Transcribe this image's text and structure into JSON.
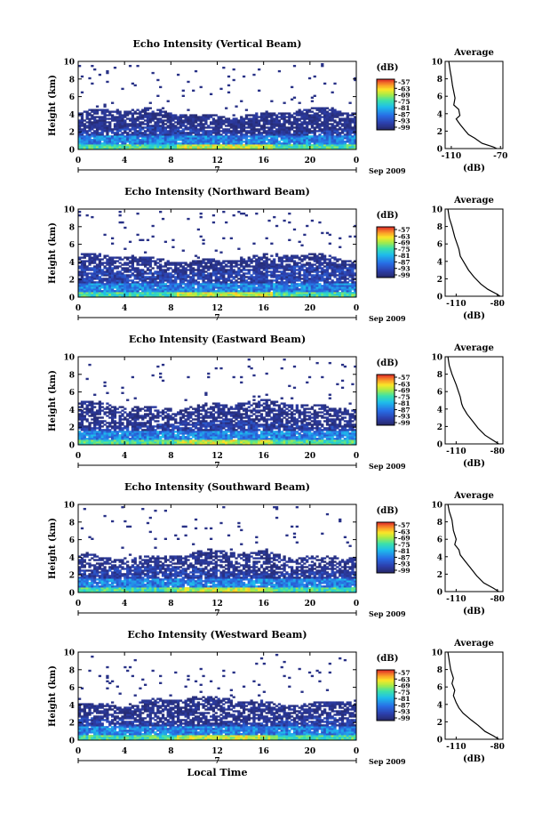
{
  "xlabel": "Local Time",
  "chart_data": [
    {
      "type": "heatmap",
      "title": "Echo Intensity (Vertical Beam)",
      "ylabel": "Height (km)",
      "xlim": [
        0,
        24
      ],
      "ylim": [
        0,
        10
      ],
      "x_ticks": [
        "0",
        "4",
        "8",
        "12",
        "16",
        "20",
        "0"
      ],
      "y_ticks": [
        "0",
        "2",
        "4",
        "6",
        "8",
        "10"
      ],
      "date_marker": "7",
      "date_label": "Sep 2009",
      "colorbar": {
        "unit": "(dB)",
        "ticks": [
          "-57",
          "-63",
          "-69",
          "-75",
          "-81",
          "-87",
          "-93",
          "-99"
        ]
      },
      "features": {
        "top_km": 4.2,
        "layer2_km": 2.2,
        "sparse": 0.2
      },
      "average": {
        "title": "Average",
        "xlabel": "(dB)",
        "x_ticks": [
          "-110",
          "-70"
        ],
        "x_tick_values": [
          -110,
          -70
        ],
        "xlim": [
          -115,
          -68
        ],
        "y_ticks": [
          "0",
          "2",
          "4",
          "6",
          "8",
          "10"
        ],
        "profile": [
          [
            -112,
            10
          ],
          [
            -111,
            9.0
          ],
          [
            -110,
            8.2
          ],
          [
            -109,
            7.2
          ],
          [
            -107,
            5.8
          ],
          [
            -108,
            5.0
          ],
          [
            -104,
            4.5
          ],
          [
            -103,
            3.8
          ],
          [
            -106,
            3.4
          ],
          [
            -103,
            2.8
          ],
          [
            -99,
            2.1
          ],
          [
            -96,
            1.6
          ],
          [
            -91,
            1.2
          ],
          [
            -85,
            0.6
          ],
          [
            -76,
            0.2
          ],
          [
            -73,
            0
          ]
        ]
      }
    },
    {
      "type": "heatmap",
      "title": "Echo Intensity (Northward Beam)",
      "ylabel": "Height (km)",
      "xlim": [
        0,
        24
      ],
      "ylim": [
        0,
        10
      ],
      "x_ticks": [
        "0",
        "4",
        "8",
        "12",
        "16",
        "20",
        "0"
      ],
      "y_ticks": [
        "0",
        "2",
        "4",
        "6",
        "8",
        "10"
      ],
      "date_marker": "7",
      "date_label": "Sep 2009",
      "colorbar": {
        "unit": "(dB)",
        "ticks": [
          "-57",
          "-63",
          "-69",
          "-75",
          "-81",
          "-87",
          "-93",
          "-99"
        ]
      },
      "features": {
        "top_km": 4.5,
        "layer2_km": 3.2,
        "sparse": 0.28
      },
      "average": {
        "title": "Average",
        "xlabel": "(dB)",
        "x_ticks": [
          "-110",
          "-80"
        ],
        "x_tick_values": [
          -110,
          -80
        ],
        "xlim": [
          -118,
          -76
        ],
        "y_ticks": [
          "0",
          "2",
          "4",
          "6",
          "8",
          "10"
        ],
        "profile": [
          [
            -116,
            10
          ],
          [
            -115,
            9.0
          ],
          [
            -113,
            8.0
          ],
          [
            -111,
            6.8
          ],
          [
            -108,
            5.4
          ],
          [
            -107,
            4.6
          ],
          [
            -104,
            3.8
          ],
          [
            -101,
            3.0
          ],
          [
            -97,
            2.2
          ],
          [
            -92,
            1.4
          ],
          [
            -87,
            0.8
          ],
          [
            -81,
            0.3
          ],
          [
            -78,
            0
          ]
        ]
      }
    },
    {
      "type": "heatmap",
      "title": "Echo Intensity (Eastward Beam)",
      "ylabel": "Height (km)",
      "xlim": [
        0,
        24
      ],
      "ylim": [
        0,
        10
      ],
      "x_ticks": [
        "0",
        "4",
        "8",
        "12",
        "16",
        "20",
        "0"
      ],
      "y_ticks": [
        "0",
        "2",
        "4",
        "6",
        "8",
        "10"
      ],
      "date_marker": "7",
      "date_label": "Sep 2009",
      "colorbar": {
        "unit": "(dB)",
        "ticks": [
          "-57",
          "-63",
          "-69",
          "-75",
          "-81",
          "-87",
          "-93",
          "-99"
        ]
      },
      "features": {
        "top_km": 4.6,
        "layer2_km": 2.4,
        "sparse": 0.34
      },
      "average": {
        "title": "Average",
        "xlabel": "(dB)",
        "x_ticks": [
          "-110",
          "-80"
        ],
        "x_tick_values": [
          -110,
          -80
        ],
        "xlim": [
          -118,
          -76
        ],
        "y_ticks": [
          "0",
          "2",
          "4",
          "6",
          "8",
          "10"
        ],
        "profile": [
          [
            -116,
            10
          ],
          [
            -115,
            9.0
          ],
          [
            -113,
            8.0
          ],
          [
            -110,
            6.8
          ],
          [
            -107,
            5.4
          ],
          [
            -106,
            4.6
          ],
          [
            -105,
            4.2
          ],
          [
            -102,
            3.4
          ],
          [
            -98,
            2.6
          ],
          [
            -94,
            1.8
          ],
          [
            -89,
            1.0
          ],
          [
            -83,
            0.4
          ],
          [
            -79,
            0
          ]
        ]
      }
    },
    {
      "type": "heatmap",
      "title": "Echo Intensity (Southward Beam)",
      "ylabel": "Height (km)",
      "xlim": [
        0,
        24
      ],
      "ylim": [
        0,
        10
      ],
      "x_ticks": [
        "0",
        "4",
        "8",
        "12",
        "16",
        "20",
        "0"
      ],
      "y_ticks": [
        "0",
        "2",
        "4",
        "6",
        "8",
        "10"
      ],
      "date_marker": "7",
      "date_label": "Sep 2009",
      "colorbar": {
        "unit": "(dB)",
        "ticks": [
          "-57",
          "-63",
          "-69",
          "-75",
          "-81",
          "-87",
          "-93",
          "-99"
        ]
      },
      "features": {
        "top_km": 4.4,
        "layer2_km": 2.6,
        "sparse": 0.38
      },
      "average": {
        "title": "Average",
        "xlabel": "(dB)",
        "x_ticks": [
          "-110",
          "-80"
        ],
        "x_tick_values": [
          -110,
          -80
        ],
        "xlim": [
          -118,
          -76
        ],
        "y_ticks": [
          "0",
          "2",
          "4",
          "6",
          "8",
          "10"
        ],
        "profile": [
          [
            -116,
            10
          ],
          [
            -115,
            9.2
          ],
          [
            -113,
            8.2
          ],
          [
            -112,
            7.0
          ],
          [
            -110,
            6.0
          ],
          [
            -111,
            5.4
          ],
          [
            -108,
            4.8
          ],
          [
            -107,
            4.2
          ],
          [
            -103,
            3.4
          ],
          [
            -99,
            2.6
          ],
          [
            -95,
            1.8
          ],
          [
            -90,
            1.0
          ],
          [
            -83,
            0.4
          ],
          [
            -79,
            0
          ]
        ]
      }
    },
    {
      "type": "heatmap",
      "title": "Echo Intensity (Westward Beam)",
      "ylabel": "Height (km)",
      "xlim": [
        0,
        24
      ],
      "ylim": [
        0,
        10
      ],
      "x_ticks": [
        "0",
        "4",
        "8",
        "12",
        "16",
        "20",
        "0"
      ],
      "y_ticks": [
        "0",
        "2",
        "4",
        "6",
        "8",
        "10"
      ],
      "date_marker": "7",
      "date_label": "Sep 2009",
      "colorbar": {
        "unit": "(dB)",
        "ticks": [
          "-57",
          "-63",
          "-69",
          "-75",
          "-81",
          "-87",
          "-93",
          "-99"
        ]
      },
      "features": {
        "top_km": 4.5,
        "layer2_km": 2.2,
        "sparse": 0.3
      },
      "average": {
        "title": "Average",
        "xlabel": "(dB)",
        "x_ticks": [
          "-110",
          "-80"
        ],
        "x_tick_values": [
          -110,
          -80
        ],
        "xlim": [
          -118,
          -76
        ],
        "y_ticks": [
          "0",
          "2",
          "4",
          "6",
          "8",
          "10"
        ],
        "profile": [
          [
            -116,
            10
          ],
          [
            -115,
            9.0
          ],
          [
            -114,
            8.0
          ],
          [
            -112,
            7.0
          ],
          [
            -113,
            6.4
          ],
          [
            -111,
            5.6
          ],
          [
            -112,
            5.0
          ],
          [
            -110,
            4.2
          ],
          [
            -108,
            3.6
          ],
          [
            -105,
            3.0
          ],
          [
            -99,
            2.2
          ],
          [
            -94,
            1.6
          ],
          [
            -89,
            0.9
          ],
          [
            -83,
            0.4
          ],
          [
            -79,
            0
          ]
        ]
      }
    }
  ]
}
